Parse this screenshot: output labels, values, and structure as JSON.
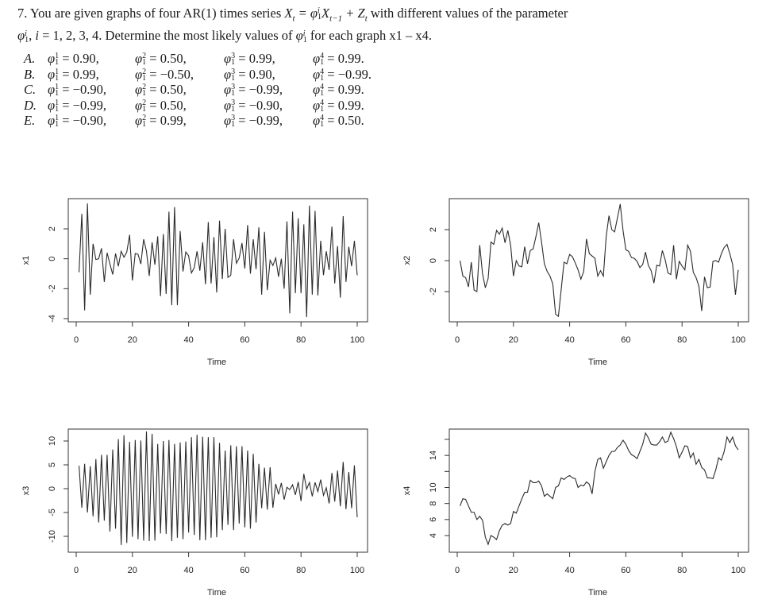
{
  "question": {
    "number": "7.",
    "line1_pre": "You are given graphs of four AR(1) times series",
    "line1_eq": "X_t = φ_1^i X_{t−1} + Z_t",
    "line1_post": "with different values of the parameter",
    "line2_pre": "φ_1^i, i = 1, 2, 3, 4.",
    "line2_mid": "Determine the most likely values of",
    "line2_phi": "φ_1^i",
    "line2_post": "for each graph x1 – x4."
  },
  "options": [
    {
      "letter": "A.",
      "values": [
        "= 0.90,",
        "= 0.50,",
        "= 0.99,",
        "= 0.99."
      ]
    },
    {
      "letter": "B.",
      "values": [
        "= 0.99,",
        "= −0.50,",
        "= 0.90,",
        "= −0.99."
      ]
    },
    {
      "letter": "C.",
      "values": [
        "= −0.90,",
        "= 0.50,",
        "= −0.99,",
        "= 0.99."
      ]
    },
    {
      "letter": "D.",
      "values": [
        "= −0.99,",
        "= 0.50,",
        "= −0.90,",
        "= 0.99."
      ]
    },
    {
      "letter": "E.",
      "values": [
        "= −0.90,",
        "= 0.99,",
        "= −0.99,",
        "= 0.50."
      ]
    }
  ],
  "chart_data": [
    {
      "type": "line",
      "title": "",
      "xlabel": "Time",
      "ylabel": "x1",
      "xlim": [
        1,
        100
      ],
      "ylim": [
        -4,
        3.8
      ],
      "x_ticks": [
        0,
        20,
        40,
        60,
        80,
        100
      ],
      "y_ticks": [
        -4,
        -2,
        0,
        2
      ],
      "y_tick_labels": [
        "-4",
        "-2",
        "0",
        "2"
      ],
      "grid": false,
      "values": [
        -0.9,
        3.0,
        -3.45,
        3.7,
        -2.4,
        1.0,
        -0.05,
        0.0,
        0.7,
        -1.55,
        0.4,
        -0.35,
        -1.05,
        0.35,
        -0.5,
        0.5,
        0.1,
        0.45,
        1.6,
        -1.45,
        0.35,
        0.3,
        -0.35,
        1.3,
        0.5,
        -1.15,
        1.1,
        -0.4,
        1.5,
        -2.5,
        1.65,
        -2.35,
        3.15,
        -3.1,
        3.45,
        -3.1,
        1.85,
        -0.85,
        0.45,
        0.2,
        -0.95,
        -0.6,
        0.5,
        -0.8,
        1.1,
        -1.7,
        2.45,
        -1.65,
        1.45,
        -2.25,
        2.55,
        -1.35,
        2.0,
        -1.25,
        -1.1,
        1.3,
        -0.3,
        0.05,
        1.05,
        -0.65,
        2.25,
        -1.0,
        1.3,
        -0.7,
        2.1,
        -2.4,
        1.8,
        -2.1,
        -0.1,
        -0.45,
        0.05,
        -1.2,
        0.0,
        -2.0,
        2.5,
        -3.65,
        3.15,
        -2.3,
        2.7,
        -2.3,
        2.3,
        -3.9,
        3.55,
        -2.4,
        3.2,
        -2.45,
        1.2,
        -1.1,
        0.5,
        -0.75,
        2.15,
        -1.65,
        0.85,
        -2.6,
        2.85,
        -1.55,
        0.8,
        -0.5,
        1.2,
        -1.1
      ]
    },
    {
      "type": "line",
      "title": "",
      "xlabel": "Time",
      "ylabel": "x2",
      "xlim": [
        1,
        100
      ],
      "ylim": [
        -3.6,
        3.7
      ],
      "x_ticks": [
        0,
        20,
        40,
        60,
        80,
        100
      ],
      "y_ticks": [
        -2,
        0,
        2
      ],
      "y_tick_labels": [
        "-2",
        "0",
        "2"
      ],
      "grid": false,
      "values": [
        0.0,
        -1.0,
        -1.1,
        -1.7,
        -0.1,
        -1.9,
        -2.0,
        1.0,
        -0.85,
        -1.75,
        -1.15,
        1.2,
        1.05,
        1.95,
        1.7,
        2.1,
        1.15,
        1.95,
        1.0,
        -1.0,
        0.0,
        -0.35,
        -0.4,
        0.9,
        -0.2,
        0.65,
        0.75,
        1.55,
        2.45,
        1.2,
        -0.2,
        -0.7,
        -1.0,
        -1.5,
        -3.45,
        -3.6,
        -1.85,
        -0.1,
        -0.2,
        0.4,
        0.25,
        -0.15,
        -0.6,
        -1.2,
        -0.7,
        1.4,
        0.45,
        0.3,
        0.15,
        -1.0,
        -0.65,
        -1.0,
        1.55,
        2.9,
        2.0,
        1.85,
        2.75,
        3.65,
        1.95,
        0.7,
        0.6,
        0.2,
        0.15,
        -0.05,
        -0.45,
        -0.25,
        0.55,
        -0.3,
        -0.65,
        -1.45,
        -0.3,
        -0.35,
        0.65,
        0.05,
        -0.8,
        -0.9,
        1.0,
        -1.2,
        -0.05,
        -0.35,
        -0.6,
        1.0,
        0.6,
        -0.75,
        -1.1,
        -1.65,
        -3.25,
        -1.05,
        -1.75,
        -1.7,
        -0.05,
        0.0,
        -0.1,
        0.45,
        0.85,
        1.05,
        0.45,
        -0.25,
        -2.2,
        -0.6
      ]
    },
    {
      "type": "line",
      "title": "",
      "xlabel": "Time",
      "ylabel": "x3",
      "xlim": [
        1,
        100
      ],
      "ylim": [
        -12,
        12
      ],
      "x_ticks": [
        0,
        20,
        40,
        60,
        80,
        100
      ],
      "y_ticks": [
        -10,
        -5,
        0,
        5,
        10
      ],
      "y_tick_labels": [
        "-10",
        "-5",
        "0",
        "5",
        "10"
      ],
      "grid": false,
      "values": [
        4.8,
        -4.0,
        5.2,
        -5.0,
        4.7,
        -5.8,
        6.2,
        -7.1,
        7.1,
        -6.7,
        7.1,
        -9.0,
        8.2,
        -8.4,
        10.4,
        -11.8,
        11.2,
        -11.4,
        9.8,
        -10.1,
        10.2,
        -10.6,
        10.1,
        -10.9,
        12.0,
        -11.0,
        11.5,
        -10.9,
        9.4,
        -9.4,
        10.0,
        -9.5,
        10.2,
        -11.0,
        9.4,
        -10.3,
        9.7,
        -10.6,
        9.9,
        -9.2,
        10.8,
        -9.7,
        11.3,
        -10.8,
        10.9,
        -10.8,
        10.8,
        -10.3,
        10.8,
        -10.2,
        9.6,
        -8.7,
        8.0,
        -7.6,
        9.1,
        -8.7,
        8.9,
        -7.3,
        8.9,
        -8.1,
        8.0,
        -8.4,
        7.3,
        -7.1,
        5.2,
        -4.1,
        4.4,
        -4.4,
        4.5,
        -4.0,
        1.0,
        -1.2,
        1.2,
        -2.3,
        0.3,
        -0.2,
        0.8,
        -1.3,
        1.4,
        -2.6,
        3.1,
        -0.1,
        1.3,
        -1.6,
        1.3,
        -0.6,
        1.9,
        -1.4,
        0.2,
        -3.1,
        3.3,
        -2.7,
        3.8,
        -3.7,
        5.6,
        -4.3,
        3.5,
        -4.1,
        4.9,
        -6.0
      ]
    },
    {
      "type": "line",
      "title": "",
      "xlabel": "Time",
      "ylabel": "x4",
      "xlim": [
        1,
        100
      ],
      "ylim": [
        2.9,
        16.9
      ],
      "x_ticks": [
        0,
        20,
        40,
        60,
        80,
        100
      ],
      "y_ticks": [
        4,
        6,
        8,
        10,
        12,
        14,
        16
      ],
      "y_tick_labels": [
        "4",
        "6",
        "8",
        "10",
        "",
        "14",
        ""
      ],
      "grid": false,
      "values": [
        7.7,
        8.6,
        8.5,
        7.7,
        6.9,
        6.9,
        6.0,
        6.4,
        5.9,
        3.8,
        2.9,
        4.0,
        3.8,
        3.5,
        4.6,
        5.3,
        5.5,
        5.3,
        5.5,
        7.0,
        6.8,
        7.7,
        8.6,
        9.4,
        9.4,
        10.9,
        10.6,
        10.6,
        10.8,
        10.2,
        8.9,
        9.2,
        8.9,
        8.6,
        10.0,
        10.2,
        11.2,
        11.0,
        11.3,
        11.5,
        11.2,
        11.1,
        10.0,
        10.3,
        10.2,
        10.7,
        10.4,
        9.2,
        12.0,
        13.5,
        13.7,
        12.4,
        13.2,
        14.0,
        14.5,
        14.5,
        15.0,
        15.3,
        15.9,
        15.4,
        14.6,
        14.1,
        13.9,
        13.6,
        14.5,
        15.4,
        16.8,
        16.2,
        15.4,
        15.3,
        15.3,
        15.7,
        16.3,
        15.6,
        15.8,
        16.9,
        16.1,
        15.1,
        13.7,
        14.4,
        15.2,
        15.1,
        13.7,
        14.3,
        12.9,
        13.5,
        12.5,
        12.2,
        11.2,
        11.2,
        11.1,
        12.2,
        13.7,
        13.4,
        14.5,
        16.3,
        15.6,
        16.3,
        15.2,
        14.7
      ]
    }
  ],
  "colors": {
    "line": "#2b2b2b",
    "axis": "#333333",
    "text": "#1a1a1a"
  }
}
